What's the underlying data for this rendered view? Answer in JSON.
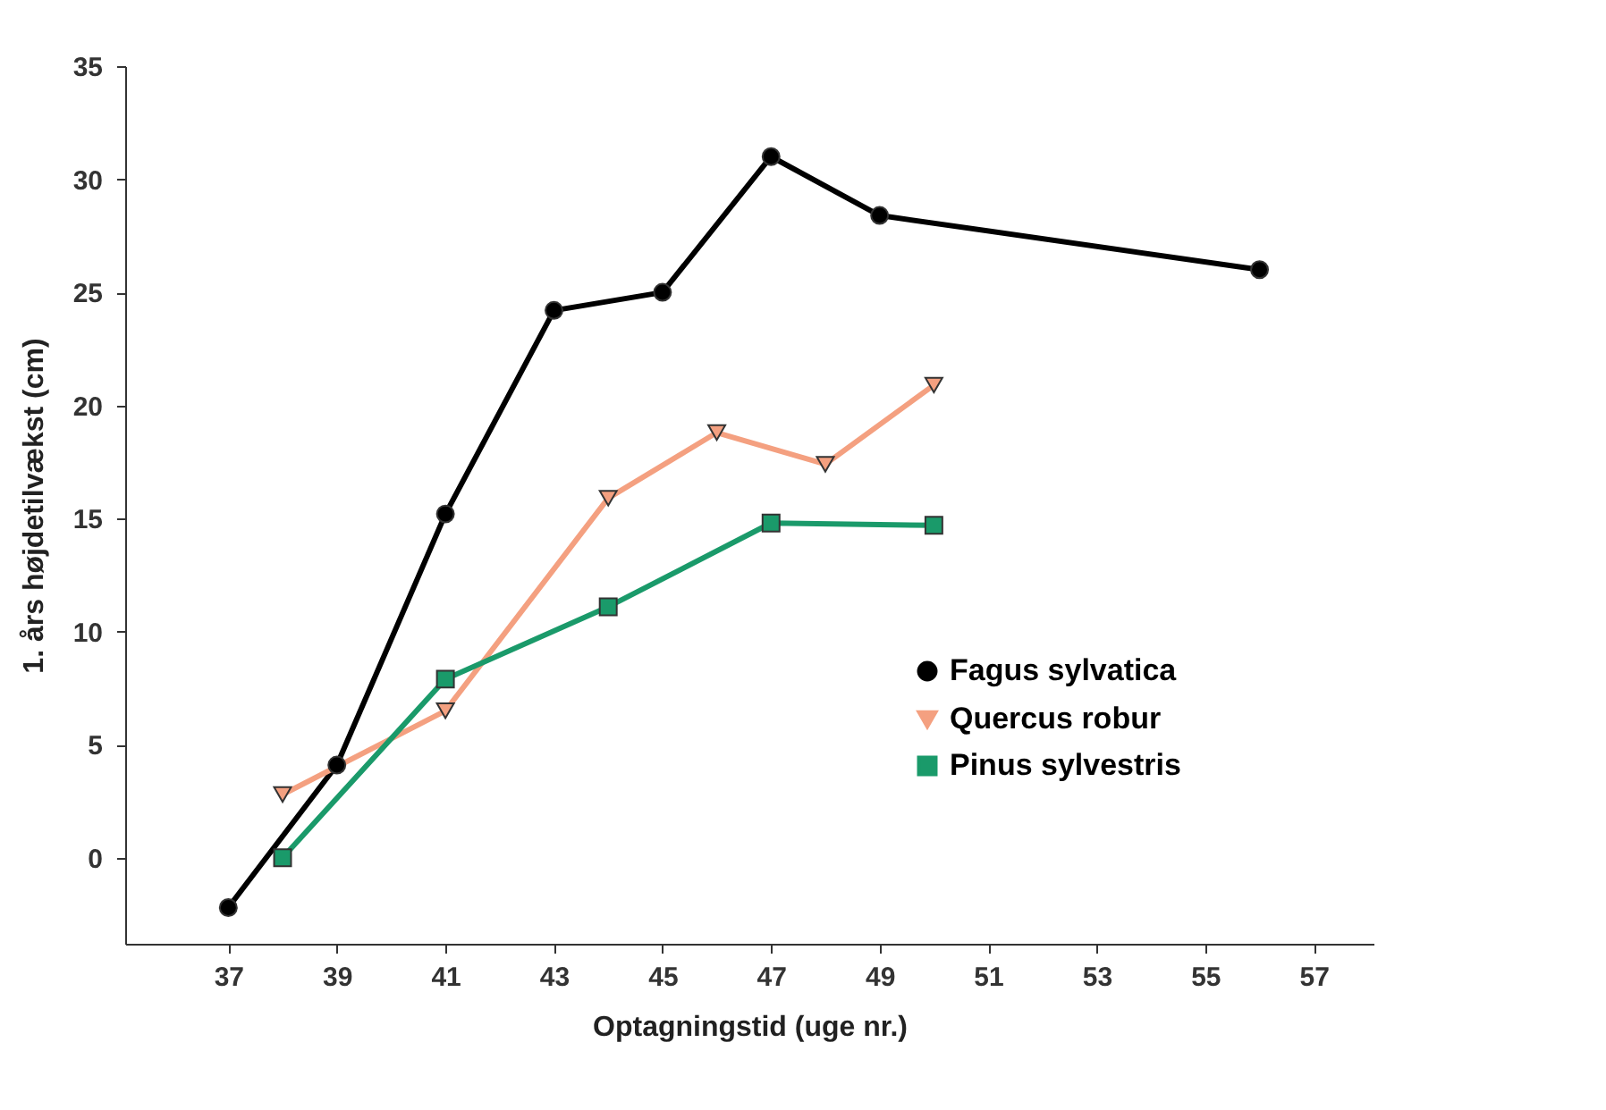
{
  "chart_data": {
    "type": "line",
    "xlabel": "Optagningstid (uge nr.)",
    "ylabel": "1. års højdetilvækst (cm)",
    "xlim": [
      35.1,
      58.1
    ],
    "xticks": [
      37,
      39,
      41,
      43,
      45,
      47,
      49,
      51,
      53,
      55,
      57
    ],
    "ylim": [
      -3.8,
      35
    ],
    "yticks": [
      0,
      5,
      10,
      15,
      20,
      25,
      30,
      35
    ],
    "grid": false,
    "legend": "right",
    "series": [
      {
        "name": "Fagus sylvatica",
        "color": "#000000",
        "marker": "circle",
        "x": [
          37,
          39,
          41,
          43,
          45,
          47,
          49,
          56
        ],
        "values": [
          -2.2,
          4.1,
          15.2,
          24.2,
          25.0,
          31.0,
          28.4,
          26.0
        ]
      },
      {
        "name": "Quercus robur",
        "color": "#f4a080",
        "marker": "triangle",
        "x": [
          38,
          41,
          44,
          46,
          48,
          50
        ],
        "values": [
          2.8,
          6.5,
          15.9,
          18.8,
          17.4,
          20.9
        ]
      },
      {
        "name": "Pinus sylvestris",
        "color": "#1a9a6a",
        "marker": "square",
        "x": [
          38,
          41,
          44,
          47,
          50
        ],
        "values": [
          0,
          7.9,
          11.1,
          14.8,
          14.7
        ]
      }
    ]
  }
}
